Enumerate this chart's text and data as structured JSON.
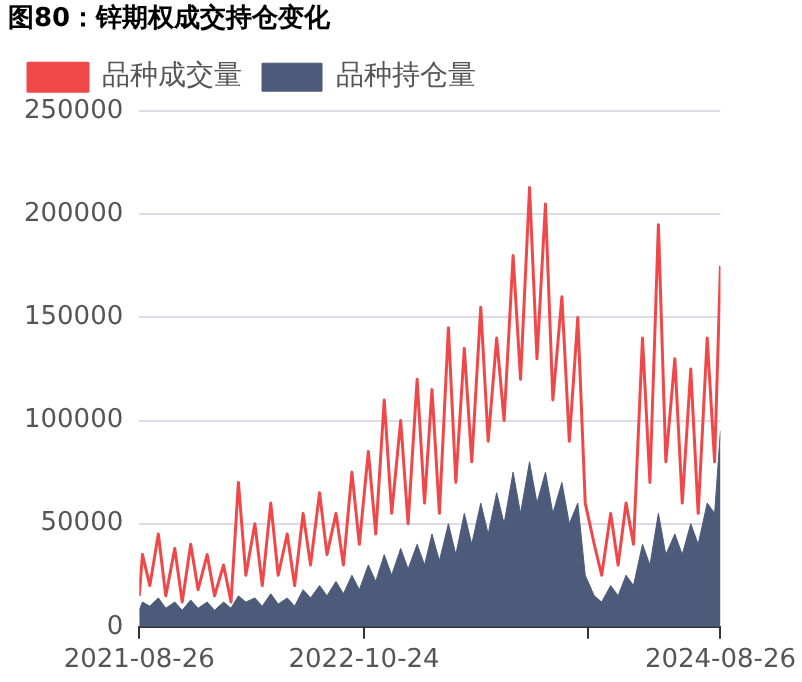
{
  "chart_data": {
    "type": "area",
    "title": "图80：锌期权成交持仓变化",
    "x": [
      "2021-08-26",
      "2021-09-01",
      "2021-09-15",
      "2021-10-01",
      "2021-10-15",
      "2021-11-01",
      "2021-11-15",
      "2021-12-01",
      "2021-12-15",
      "2022-01-01",
      "2022-01-15",
      "2022-02-01",
      "2022-02-15",
      "2022-03-01",
      "2022-03-15",
      "2022-04-01",
      "2022-04-15",
      "2022-05-01",
      "2022-05-15",
      "2022-06-01",
      "2022-06-15",
      "2022-07-01",
      "2022-07-15",
      "2022-08-01",
      "2022-08-15",
      "2022-09-01",
      "2022-09-15",
      "2022-10-01",
      "2022-10-15",
      "2022-11-01",
      "2022-11-15",
      "2022-12-01",
      "2022-12-15",
      "2023-01-01",
      "2023-01-15",
      "2023-02-01",
      "2023-02-15",
      "2023-03-01",
      "2023-03-15",
      "2023-04-01",
      "2023-04-15",
      "2023-05-01",
      "2023-05-15",
      "2023-06-01",
      "2023-06-15",
      "2023-07-01",
      "2023-07-15",
      "2023-08-01",
      "2023-08-15",
      "2023-09-01",
      "2023-09-15",
      "2023-10-01",
      "2023-10-15",
      "2023-11-01",
      "2023-11-15",
      "2023-12-01",
      "2023-12-15",
      "2024-01-01",
      "2024-01-15",
      "2024-02-01",
      "2024-02-15",
      "2024-03-01",
      "2024-03-15",
      "2024-04-01",
      "2024-04-15",
      "2024-05-01",
      "2024-05-15",
      "2024-06-01",
      "2024-06-15",
      "2024-07-01",
      "2024-07-15",
      "2024-08-01",
      "2024-08-15",
      "2024-08-26"
    ],
    "series": [
      {
        "name": "品种持仓量",
        "color": "#4d5b7a",
        "values": [
          8000,
          12000,
          10000,
          14000,
          9000,
          12000,
          8000,
          13000,
          9000,
          12000,
          8000,
          12000,
          9000,
          15000,
          12000,
          14000,
          10000,
          16000,
          11000,
          14000,
          10000,
          18000,
          14000,
          20000,
          15000,
          22000,
          16000,
          25000,
          18000,
          30000,
          22000,
          35000,
          25000,
          38000,
          28000,
          40000,
          30000,
          45000,
          32000,
          50000,
          35000,
          55000,
          40000,
          60000,
          45000,
          65000,
          50000,
          75000,
          55000,
          80000,
          60000,
          75000,
          55000,
          70000,
          50000,
          60000,
          25000,
          15000,
          12000,
          20000,
          15000,
          25000,
          20000,
          40000,
          30000,
          55000,
          35000,
          45000,
          35000,
          50000,
          40000,
          60000,
          55000,
          95000
        ]
      },
      {
        "name": "品种成交量",
        "type": "line",
        "color": "#f04848",
        "values": [
          15000,
          35000,
          20000,
          45000,
          15000,
          38000,
          12000,
          40000,
          18000,
          35000,
          15000,
          30000,
          12000,
          70000,
          25000,
          50000,
          20000,
          60000,
          25000,
          45000,
          20000,
          55000,
          30000,
          65000,
          35000,
          55000,
          30000,
          75000,
          40000,
          85000,
          45000,
          110000,
          55000,
          100000,
          50000,
          120000,
          60000,
          115000,
          55000,
          145000,
          70000,
          135000,
          80000,
          155000,
          90000,
          140000,
          100000,
          180000,
          120000,
          213000,
          130000,
          205000,
          110000,
          160000,
          90000,
          150000,
          60000,
          40000,
          25000,
          55000,
          30000,
          60000,
          40000,
          140000,
          70000,
          195000,
          80000,
          130000,
          60000,
          125000,
          55000,
          140000,
          80000,
          175000
        ]
      }
    ],
    "xlim": [
      "2021-08-26",
      "2024-08-26"
    ],
    "xticks": [
      {
        "value": "2021-08-26",
        "label": "2021-08-26"
      },
      {
        "value": "2022-10-24",
        "label": "2022-10-24"
      },
      {
        "value": "2023-12-20",
        "label": null
      },
      {
        "value": "2024-08-26",
        "label": "2024-08-26"
      }
    ],
    "ylim": [
      0,
      250000
    ],
    "yticks": [
      0,
      50000,
      100000,
      150000,
      200000,
      250000
    ],
    "grid": "y",
    "legend": "top left",
    "marker": "none",
    "line_style": "solid"
  }
}
